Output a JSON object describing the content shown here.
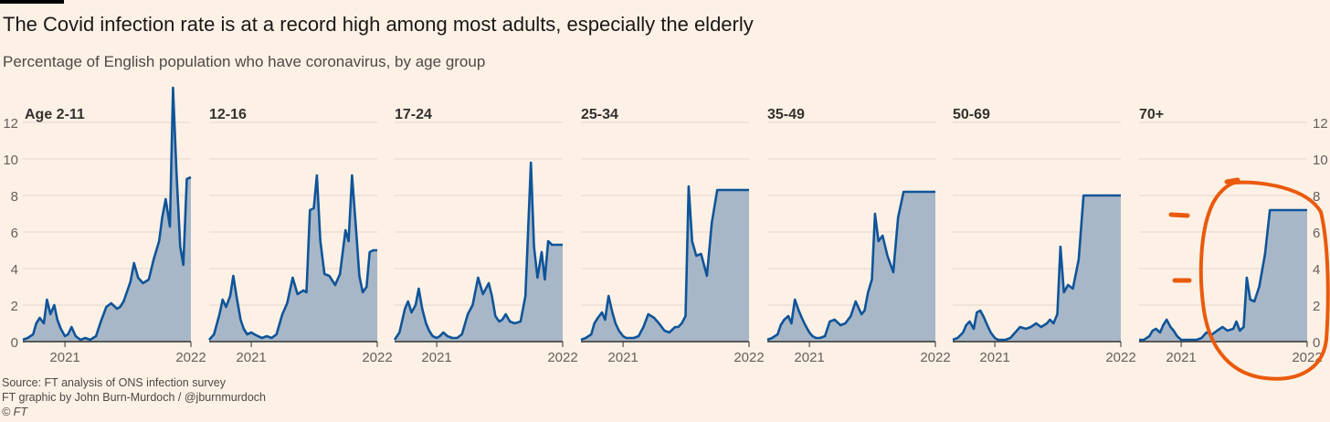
{
  "header": {
    "title": "The Covid infection rate is at a record high among most adults, especially the elderly",
    "subtitle": "Percentage of English population who have coronavirus, by age group"
  },
  "footer": {
    "source": "Source: FT analysis of ONS infection survey",
    "credit": "FT graphic by John Burn-Murdoch / @jburnmurdoch",
    "copyright": "© FT"
  },
  "colors": {
    "background": "#fdf1e6",
    "line": "#0f5499",
    "area": "#a3b3c5",
    "gridline": "#e3d8cc",
    "annotation": "#ea5a0c"
  },
  "chart_data": {
    "type": "area",
    "layout": "small-multiples",
    "y_unit": "percent",
    "ylim": [
      0,
      12
    ],
    "yticks": [
      0,
      2,
      4,
      6,
      8,
      10,
      12
    ],
    "xlim": [
      "2020-09",
      "2022-01"
    ],
    "xticks": [
      "2021",
      "2022"
    ],
    "grid": true,
    "annotation": "hand-drawn orange circle and dashes around the 70+ panel",
    "panels": [
      {
        "name": "Age 2-11",
        "dates": [
          "2020-09-01",
          "2020-09-15",
          "2020-10-01",
          "2020-10-10",
          "2020-10-20",
          "2020-11-01",
          "2020-11-10",
          "2020-11-20",
          "2020-12-01",
          "2020-12-10",
          "2020-12-20",
          "2021-01-01",
          "2021-01-10",
          "2021-01-20",
          "2021-02-01",
          "2021-02-15",
          "2021-03-01",
          "2021-03-15",
          "2021-04-01",
          "2021-04-15",
          "2021-05-01",
          "2021-05-15",
          "2021-06-01",
          "2021-06-10",
          "2021-06-20",
          "2021-07-01",
          "2021-07-10",
          "2021-07-20",
          "2021-08-01",
          "2021-08-15",
          "2021-09-01",
          "2021-09-15",
          "2021-10-01",
          "2021-10-10",
          "2021-10-20",
          "2021-11-01",
          "2021-11-10",
          "2021-11-20",
          "2021-12-01",
          "2021-12-10",
          "2021-12-20",
          "2022-01-01"
        ],
        "values": [
          0.1,
          0.2,
          0.4,
          1.0,
          1.3,
          1.0,
          2.3,
          1.5,
          2.0,
          1.2,
          0.7,
          0.3,
          0.4,
          0.8,
          0.3,
          0.1,
          0.2,
          0.1,
          0.3,
          1.1,
          1.9,
          2.1,
          1.8,
          1.9,
          2.2,
          2.8,
          3.3,
          4.3,
          3.5,
          3.2,
          3.4,
          4.5,
          5.5,
          6.8,
          7.8,
          6.3,
          13.9,
          9.4,
          5.2,
          4.2,
          8.9,
          9.0
        ]
      },
      {
        "name": "12-16",
        "dates": [
          "2020-09-01",
          "2020-09-15",
          "2020-10-01",
          "2020-10-10",
          "2020-10-20",
          "2020-11-01",
          "2020-11-10",
          "2020-11-20",
          "2020-12-01",
          "2020-12-10",
          "2020-12-20",
          "2021-01-01",
          "2021-01-10",
          "2021-01-20",
          "2021-02-01",
          "2021-02-15",
          "2021-03-01",
          "2021-03-15",
          "2021-04-01",
          "2021-04-15",
          "2021-05-01",
          "2021-05-15",
          "2021-06-01",
          "2021-06-10",
          "2021-06-20",
          "2021-07-01",
          "2021-07-10",
          "2021-07-20",
          "2021-08-01",
          "2021-08-15",
          "2021-09-01",
          "2021-09-15",
          "2021-10-01",
          "2021-10-10",
          "2021-10-20",
          "2021-11-01",
          "2021-11-10",
          "2021-11-20",
          "2021-12-01",
          "2021-12-10",
          "2021-12-20",
          "2022-01-01"
        ],
        "values": [
          0.1,
          0.4,
          1.5,
          2.3,
          1.9,
          2.5,
          3.6,
          2.4,
          1.2,
          0.7,
          0.4,
          0.5,
          0.4,
          0.3,
          0.2,
          0.3,
          0.2,
          0.4,
          1.5,
          2.1,
          3.5,
          2.6,
          2.8,
          2.7,
          7.2,
          7.3,
          9.1,
          5.5,
          3.7,
          3.6,
          3.1,
          3.7,
          6.1,
          5.5,
          9.1,
          6.0,
          3.6,
          2.7,
          3.0,
          4.9,
          5.0,
          5.0
        ]
      },
      {
        "name": "17-24",
        "dates": [
          "2020-09-01",
          "2020-09-15",
          "2020-10-01",
          "2020-10-10",
          "2020-10-20",
          "2020-11-01",
          "2020-11-10",
          "2020-11-20",
          "2020-12-01",
          "2020-12-10",
          "2020-12-20",
          "2021-01-01",
          "2021-01-10",
          "2021-01-20",
          "2021-02-01",
          "2021-02-15",
          "2021-03-01",
          "2021-03-15",
          "2021-04-01",
          "2021-04-15",
          "2021-05-01",
          "2021-05-15",
          "2021-06-01",
          "2021-06-10",
          "2021-06-20",
          "2021-07-01",
          "2021-07-10",
          "2021-07-20",
          "2021-08-01",
          "2021-08-15",
          "2021-09-01",
          "2021-09-15",
          "2021-10-01",
          "2021-10-10",
          "2021-10-20",
          "2021-11-01",
          "2021-11-10",
          "2021-11-20",
          "2021-12-01",
          "2021-12-10",
          "2021-12-20",
          "2022-01-01"
        ],
        "values": [
          0.1,
          0.5,
          1.8,
          2.2,
          1.6,
          2.0,
          2.9,
          1.8,
          1.0,
          0.6,
          0.3,
          0.2,
          0.3,
          0.5,
          0.3,
          0.2,
          0.2,
          0.4,
          1.5,
          2.0,
          3.5,
          2.6,
          3.2,
          2.5,
          1.4,
          1.1,
          1.2,
          1.5,
          1.1,
          1.0,
          1.1,
          2.5,
          9.8,
          5.2,
          3.5,
          4.9,
          3.4,
          5.5,
          5.3,
          5.3,
          5.3,
          5.3
        ]
      },
      {
        "name": "25-34",
        "dates": [
          "2020-09-01",
          "2020-09-15",
          "2020-10-01",
          "2020-10-10",
          "2020-10-20",
          "2020-11-01",
          "2020-11-10",
          "2020-11-20",
          "2020-12-01",
          "2020-12-10",
          "2020-12-20",
          "2021-01-01",
          "2021-01-10",
          "2021-01-20",
          "2021-02-01",
          "2021-02-15",
          "2021-03-01",
          "2021-03-15",
          "2021-04-01",
          "2021-04-15",
          "2021-05-01",
          "2021-05-15",
          "2021-06-01",
          "2021-06-10",
          "2021-06-20",
          "2021-07-01",
          "2021-07-10",
          "2021-07-20",
          "2021-08-01",
          "2021-08-15",
          "2021-09-01",
          "2021-09-15",
          "2021-10-01",
          "2021-10-10",
          "2021-10-20",
          "2021-11-01",
          "2021-11-10",
          "2021-11-20",
          "2021-12-01",
          "2021-12-10",
          "2021-12-20",
          "2022-01-01"
        ],
        "values": [
          0.1,
          0.2,
          0.4,
          1.0,
          1.3,
          1.6,
          1.2,
          2.5,
          1.6,
          1.0,
          0.6,
          0.3,
          0.2,
          0.2,
          0.2,
          0.3,
          0.8,
          1.5,
          1.3,
          1.0,
          0.6,
          0.5,
          0.8,
          0.8,
          1.0,
          1.4,
          8.5,
          5.5,
          4.7,
          4.8,
          3.6,
          6.5,
          8.3,
          8.3,
          8.3,
          8.3,
          8.3,
          8.3,
          8.3,
          8.3,
          8.3,
          8.3
        ]
      },
      {
        "name": "35-49",
        "dates": [
          "2020-09-01",
          "2020-09-15",
          "2020-10-01",
          "2020-10-10",
          "2020-10-20",
          "2020-11-01",
          "2020-11-10",
          "2020-11-20",
          "2020-12-01",
          "2020-12-10",
          "2020-12-20",
          "2021-01-01",
          "2021-01-10",
          "2021-01-20",
          "2021-02-01",
          "2021-02-15",
          "2021-03-01",
          "2021-03-15",
          "2021-04-01",
          "2021-04-15",
          "2021-05-01",
          "2021-05-15",
          "2021-06-01",
          "2021-06-10",
          "2021-06-20",
          "2021-07-01",
          "2021-07-10",
          "2021-07-20",
          "2021-08-01",
          "2021-08-15",
          "2021-09-01",
          "2021-09-15",
          "2021-10-01",
          "2021-10-10",
          "2021-10-20",
          "2021-11-01",
          "2021-11-10",
          "2021-11-20",
          "2021-12-01",
          "2021-12-10",
          "2021-12-20",
          "2022-01-01"
        ],
        "values": [
          0.1,
          0.2,
          0.4,
          0.9,
          1.2,
          1.4,
          1.0,
          2.3,
          1.7,
          1.3,
          0.9,
          0.5,
          0.3,
          0.2,
          0.2,
          0.3,
          1.1,
          1.2,
          0.9,
          1.0,
          1.4,
          2.2,
          1.5,
          1.7,
          2.7,
          3.4,
          7.0,
          5.5,
          5.8,
          4.7,
          3.8,
          6.8,
          8.2,
          8.2,
          8.2,
          8.2,
          8.2,
          8.2,
          8.2,
          8.2,
          8.2,
          8.2
        ]
      },
      {
        "name": "50-69",
        "dates": [
          "2020-09-01",
          "2020-09-15",
          "2020-10-01",
          "2020-10-10",
          "2020-10-20",
          "2020-11-01",
          "2020-11-10",
          "2020-11-20",
          "2020-12-01",
          "2020-12-10",
          "2020-12-20",
          "2021-01-01",
          "2021-01-10",
          "2021-01-20",
          "2021-02-01",
          "2021-02-15",
          "2021-03-01",
          "2021-03-15",
          "2021-04-01",
          "2021-04-15",
          "2021-05-01",
          "2021-05-15",
          "2021-06-01",
          "2021-06-10",
          "2021-06-20",
          "2021-07-01",
          "2021-07-10",
          "2021-07-20",
          "2021-08-01",
          "2021-08-15",
          "2021-09-01",
          "2021-09-15",
          "2021-10-01",
          "2021-10-10",
          "2021-10-20",
          "2021-11-01",
          "2021-11-10",
          "2021-11-20",
          "2021-12-01",
          "2021-12-10",
          "2021-12-20",
          "2022-01-01"
        ],
        "values": [
          0.1,
          0.2,
          0.5,
          0.9,
          1.1,
          0.7,
          1.6,
          1.7,
          1.3,
          0.9,
          0.5,
          0.2,
          0.1,
          0.1,
          0.1,
          0.2,
          0.5,
          0.8,
          0.7,
          0.8,
          1.0,
          0.8,
          1.0,
          1.2,
          1.0,
          1.5,
          5.2,
          2.7,
          3.1,
          2.9,
          4.5,
          8.0,
          8.0,
          8.0,
          8.0,
          8.0,
          8.0,
          8.0,
          8.0,
          8.0,
          8.0,
          8.0
        ]
      },
      {
        "name": "70+",
        "dates": [
          "2020-09-01",
          "2020-09-15",
          "2020-10-01",
          "2020-10-10",
          "2020-10-20",
          "2020-11-01",
          "2020-11-10",
          "2020-11-20",
          "2020-12-01",
          "2020-12-10",
          "2020-12-20",
          "2021-01-01",
          "2021-01-10",
          "2021-01-20",
          "2021-02-01",
          "2021-02-15",
          "2021-03-01",
          "2021-03-15",
          "2021-04-01",
          "2021-04-15",
          "2021-05-01",
          "2021-05-15",
          "2021-06-01",
          "2021-06-10",
          "2021-06-20",
          "2021-07-01",
          "2021-07-10",
          "2021-07-20",
          "2021-08-01",
          "2021-08-15",
          "2021-09-01",
          "2021-09-15",
          "2021-10-01",
          "2021-10-10",
          "2021-10-20",
          "2021-11-01",
          "2021-11-10",
          "2021-11-20",
          "2021-12-01",
          "2021-12-10",
          "2021-12-20",
          "2022-01-01"
        ],
        "values": [
          0.1,
          0.1,
          0.3,
          0.6,
          0.7,
          0.5,
          0.9,
          1.2,
          0.8,
          0.6,
          0.3,
          0.1,
          0.1,
          0.1,
          0.1,
          0.1,
          0.2,
          0.5,
          0.4,
          0.6,
          0.8,
          0.6,
          0.7,
          1.1,
          0.6,
          0.8,
          3.5,
          2.3,
          2.2,
          3.0,
          4.8,
          7.2,
          7.2,
          7.2,
          7.2,
          7.2,
          7.2,
          7.2,
          7.2,
          7.2,
          7.2,
          7.2
        ]
      }
    ]
  }
}
